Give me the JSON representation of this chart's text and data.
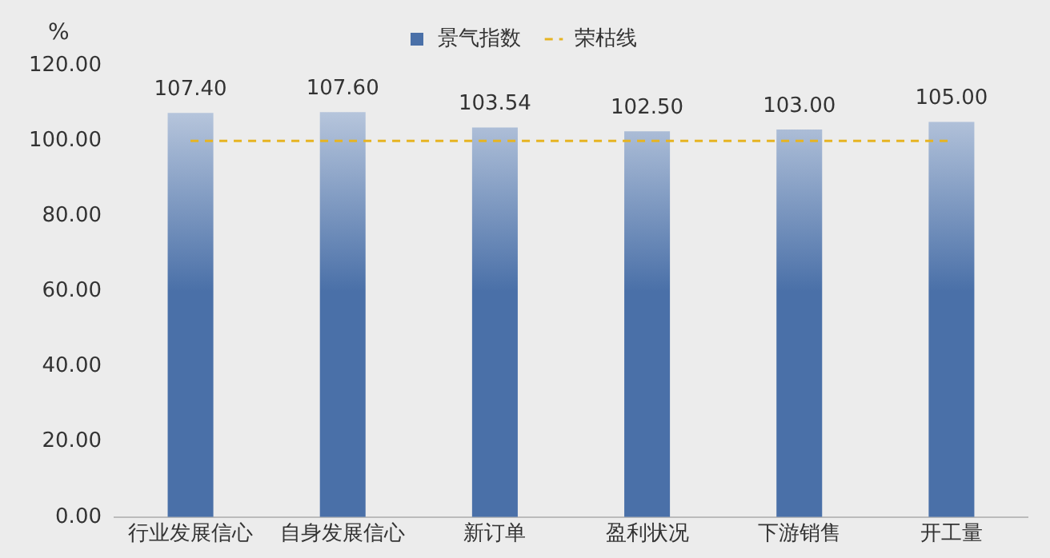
{
  "chart_data": {
    "type": "bar",
    "ylabel": "%",
    "categories": [
      "行业发展信心",
      "自身发展信心",
      "新订单",
      "盈利状况",
      "下游销售",
      "开工量"
    ],
    "series": [
      {
        "name": "景气指数",
        "color": "#4a70a8",
        "values": [
          107.4,
          107.6,
          103.54,
          102.5,
          103.0,
          105.0
        ],
        "value_labels": [
          "107.40",
          "107.60",
          "103.54",
          "102.50",
          "103.00",
          "105.00"
        ]
      }
    ],
    "ylim": [
      0,
      120
    ],
    "yticks": [
      {
        "value": 0,
        "label": "0.00"
      },
      {
        "value": 20,
        "label": "20.00"
      },
      {
        "value": 40,
        "label": "40.00"
      },
      {
        "value": 60,
        "label": "60.00"
      },
      {
        "value": 80,
        "label": "80.00"
      },
      {
        "value": 100,
        "label": "100.00"
      },
      {
        "value": 120,
        "label": "120.00"
      }
    ],
    "ref_lines": [
      {
        "axis": "y",
        "value": 100,
        "label": "荣枯线",
        "color": "#e6b422",
        "line_style": "dashed"
      }
    ],
    "grid": false,
    "legend": "top"
  }
}
